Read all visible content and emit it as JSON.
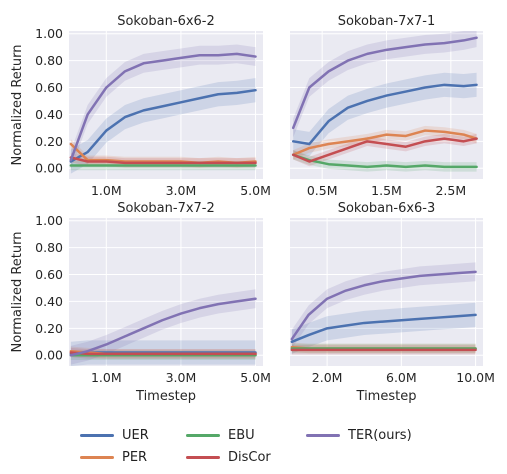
{
  "figure": {
    "ylabel": "Normalized Return",
    "xlabel": "Timestep",
    "y_ticks": [
      "0.00",
      "0.20",
      "0.40",
      "0.60",
      "0.80",
      "1.00"
    ]
  },
  "colors": {
    "UER": "#4c72b0",
    "PER": "#dd8452",
    "EBU": "#55a868",
    "DisCor": "#c44e52",
    "TER(ours)": "#8172b3",
    "panel_bg": "#eaeaf2",
    "grid": "#ffffff"
  },
  "legend": {
    "items": [
      {
        "label": "UER",
        "key": "UER"
      },
      {
        "label": "PER",
        "key": "PER"
      },
      {
        "label": "EBU",
        "key": "EBU"
      },
      {
        "label": "DisCor",
        "key": "DisCor"
      },
      {
        "label": "TER(ours)",
        "key": "TER(ours)"
      }
    ]
  },
  "chart_data": [
    {
      "type": "line",
      "title": "Sokoban-6x6-2",
      "xlim": [
        0,
        5.2
      ],
      "ylim": [
        -0.08,
        1.02
      ],
      "x_ticks": [
        {
          "v": 1,
          "label": "1.0M"
        },
        {
          "v": 3,
          "label": "3.0M"
        },
        {
          "v": 5,
          "label": "5.0M"
        }
      ],
      "x": [
        0.05,
        0.5,
        1.0,
        1.5,
        2.0,
        2.5,
        3.0,
        3.5,
        4.0,
        4.5,
        5.0
      ],
      "series": [
        {
          "name": "UER",
          "values": [
            0.05,
            0.12,
            0.28,
            0.38,
            0.43,
            0.46,
            0.49,
            0.52,
            0.55,
            0.56,
            0.58
          ]
        },
        {
          "name": "PER",
          "values": [
            0.18,
            0.06,
            0.06,
            0.05,
            0.05,
            0.05,
            0.05,
            0.04,
            0.05,
            0.04,
            0.05
          ]
        },
        {
          "name": "EBU",
          "values": [
            0.02,
            0.02,
            0.02,
            0.02,
            0.02,
            0.02,
            0.02,
            0.02,
            0.02,
            0.02,
            0.02
          ]
        },
        {
          "name": "DisCor",
          "values": [
            0.08,
            0.05,
            0.05,
            0.04,
            0.04,
            0.04,
            0.04,
            0.04,
            0.04,
            0.04,
            0.04
          ]
        },
        {
          "name": "TER(ours)",
          "values": [
            0.06,
            0.4,
            0.6,
            0.72,
            0.78,
            0.8,
            0.82,
            0.84,
            0.84,
            0.85,
            0.83
          ]
        }
      ]
    },
    {
      "type": "line",
      "title": "Sokoban-7x7-1",
      "xlim": [
        0,
        3.0
      ],
      "ylim": [
        -0.08,
        1.02
      ],
      "x_ticks": [
        {
          "v": 0.5,
          "label": "0.5M"
        },
        {
          "v": 1.5,
          "label": "1.5M"
        },
        {
          "v": 2.5,
          "label": "2.5M"
        }
      ],
      "x": [
        0.05,
        0.3,
        0.6,
        0.9,
        1.2,
        1.5,
        1.8,
        2.1,
        2.4,
        2.7,
        2.9
      ],
      "series": [
        {
          "name": "UER",
          "values": [
            0.2,
            0.18,
            0.35,
            0.45,
            0.5,
            0.54,
            0.57,
            0.6,
            0.62,
            0.61,
            0.62
          ]
        },
        {
          "name": "PER",
          "values": [
            0.1,
            0.15,
            0.18,
            0.2,
            0.22,
            0.25,
            0.24,
            0.28,
            0.27,
            0.25,
            0.22
          ]
        },
        {
          "name": "EBU",
          "values": [
            0.1,
            0.06,
            0.03,
            0.02,
            0.01,
            0.02,
            0.01,
            0.02,
            0.01,
            0.01,
            0.01
          ]
        },
        {
          "name": "DisCor",
          "values": [
            0.1,
            0.05,
            0.1,
            0.15,
            0.2,
            0.18,
            0.16,
            0.2,
            0.22,
            0.2,
            0.22
          ]
        },
        {
          "name": "TER(ours)",
          "values": [
            0.3,
            0.6,
            0.72,
            0.8,
            0.85,
            0.88,
            0.9,
            0.92,
            0.93,
            0.95,
            0.97
          ]
        }
      ]
    },
    {
      "type": "line",
      "title": "Sokoban-7x7-2",
      "xlim": [
        0,
        5.2
      ],
      "ylim": [
        -0.08,
        1.02
      ],
      "x_ticks": [
        {
          "v": 1,
          "label": "1.0M"
        },
        {
          "v": 3,
          "label": "3.0M"
        },
        {
          "v": 5,
          "label": "5.0M"
        }
      ],
      "x": [
        0.05,
        0.5,
        1.0,
        1.5,
        2.0,
        2.5,
        3.0,
        3.5,
        4.0,
        4.5,
        5.0
      ],
      "series": [
        {
          "name": "UER",
          "values": [
            0.01,
            0.02,
            0.02,
            0.02,
            0.02,
            0.02,
            0.02,
            0.02,
            0.02,
            0.02,
            0.02
          ]
        },
        {
          "name": "PER",
          "values": [
            0.03,
            0.02,
            0.01,
            0.01,
            0.01,
            0.01,
            0.01,
            0.01,
            0.01,
            0.01,
            0.01
          ]
        },
        {
          "name": "EBU",
          "values": [
            0.0,
            0.0,
            0.0,
            0.0,
            0.0,
            0.0,
            0.0,
            0.0,
            0.0,
            0.0,
            0.0
          ]
        },
        {
          "name": "DisCor",
          "values": [
            0.02,
            0.01,
            0.01,
            0.01,
            0.01,
            0.01,
            0.01,
            0.01,
            0.01,
            0.01,
            0.01
          ]
        },
        {
          "name": "TER(ours)",
          "values": [
            0.0,
            0.03,
            0.08,
            0.14,
            0.2,
            0.26,
            0.31,
            0.35,
            0.38,
            0.4,
            0.42
          ]
        }
      ]
    },
    {
      "type": "line",
      "title": "Sokoban-6x6-3",
      "xlim": [
        0,
        10.4
      ],
      "ylim": [
        -0.08,
        1.02
      ],
      "x_ticks": [
        {
          "v": 2,
          "label": "2.0M"
        },
        {
          "v": 6,
          "label": "6.0M"
        },
        {
          "v": 10,
          "label": "10.0M"
        }
      ],
      "x": [
        0.1,
        1.0,
        2.0,
        3.0,
        4.0,
        5.0,
        6.0,
        7.0,
        8.0,
        9.0,
        10.0
      ],
      "series": [
        {
          "name": "UER",
          "values": [
            0.1,
            0.15,
            0.2,
            0.22,
            0.24,
            0.25,
            0.26,
            0.27,
            0.28,
            0.29,
            0.3
          ]
        },
        {
          "name": "PER",
          "values": [
            0.06,
            0.05,
            0.05,
            0.05,
            0.05,
            0.05,
            0.05,
            0.05,
            0.05,
            0.05,
            0.05
          ]
        },
        {
          "name": "EBU",
          "values": [
            0.05,
            0.05,
            0.05,
            0.05,
            0.05,
            0.05,
            0.05,
            0.05,
            0.05,
            0.05,
            0.05
          ]
        },
        {
          "name": "DisCor",
          "values": [
            0.04,
            0.04,
            0.04,
            0.04,
            0.04,
            0.04,
            0.04,
            0.04,
            0.04,
            0.04,
            0.04
          ]
        },
        {
          "name": "TER(ours)",
          "values": [
            0.12,
            0.3,
            0.42,
            0.48,
            0.52,
            0.55,
            0.57,
            0.59,
            0.6,
            0.61,
            0.62
          ]
        }
      ]
    }
  ]
}
